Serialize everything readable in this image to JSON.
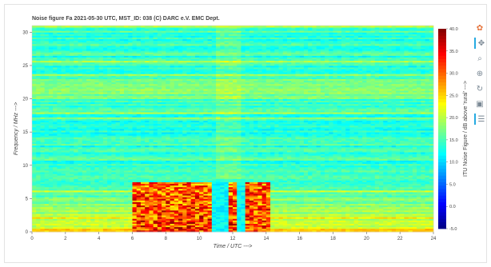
{
  "chart_data": {
    "type": "heatmap",
    "title": "Noise figure Fa  2021-05-30  UTC,  MST_ID:  038  (C) DARC e.V. EMC Dept.",
    "xlabel": "Time / UTC --->",
    "ylabel": "Frequency / MHz --->",
    "colorbar_label": "ITU Noise Figure / dB above 'rural' --->",
    "xlim": [
      0,
      24
    ],
    "ylim": [
      0,
      31
    ],
    "x_ticks": [
      "0",
      "2",
      "4",
      "6",
      "8",
      "10",
      "12",
      "14",
      "16",
      "18",
      "20",
      "22",
      "24"
    ],
    "y_ticks": [
      "0",
      "5",
      "10",
      "15",
      "20",
      "25",
      "30"
    ],
    "color_range": [
      -5,
      40
    ],
    "colorbar_ticks": [
      "-5.0",
      "0.0",
      "5.0",
      "10.0",
      "15.0",
      "20.0",
      "25.0",
      "30.0",
      "35.0",
      "40.0"
    ],
    "colormap": "jet",
    "strong_noise_block": {
      "time_start": 6,
      "time_end": 14.2,
      "freq_max": 7.5,
      "value_range": [
        25,
        40
      ]
    },
    "gaps_in_block": [
      11.0,
      11.5,
      12.5
    ]
  },
  "toolbar": {
    "icons": [
      "bokeh-logo-icon",
      "pan-icon",
      "box-zoom-icon",
      "wheel-zoom-icon",
      "reset-icon",
      "save-icon",
      "hover-icon"
    ],
    "glyphs": [
      "✿",
      "✥",
      "⌕",
      "⊕",
      "↻",
      "▣",
      "☰"
    ]
  }
}
